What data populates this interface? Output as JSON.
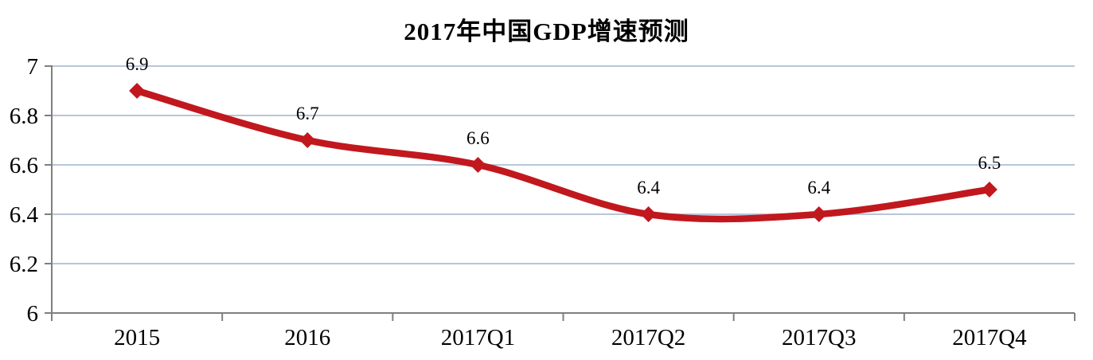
{
  "page": {
    "background": "#ffffff"
  },
  "colors": {
    "line": "#c1181e",
    "marker": "#c1181e",
    "gridline": "#b7c6da",
    "axis": "#7f7f7f",
    "tick": "#7f7f7f",
    "text": "#000000",
    "background": "#ffffff"
  },
  "chart_data": {
    "type": "line",
    "title": "2017年中国GDP增速预测",
    "categories": [
      "2015",
      "2016",
      "2017Q1",
      "2017Q2",
      "2017Q3",
      "2017Q4"
    ],
    "series": [
      {
        "values": [
          6.9,
          6.7,
          6.6,
          6.4,
          6.4,
          6.5
        ]
      }
    ],
    "data_labels": [
      "6.9",
      "6.7",
      "6.6",
      "6.4",
      "6.4",
      "6.5"
    ],
    "xlabel": "",
    "ylabel": "",
    "ylim": [
      6,
      7
    ],
    "yticks": [
      6,
      6.2,
      6.4,
      6.6,
      6.8,
      7
    ],
    "ytick_labels": [
      "6",
      "6.2",
      "6.4",
      "6.6",
      "6.8",
      "7"
    ],
    "grid": true,
    "legend_position": "none",
    "line_style": "smooth",
    "marker": "diamond"
  }
}
